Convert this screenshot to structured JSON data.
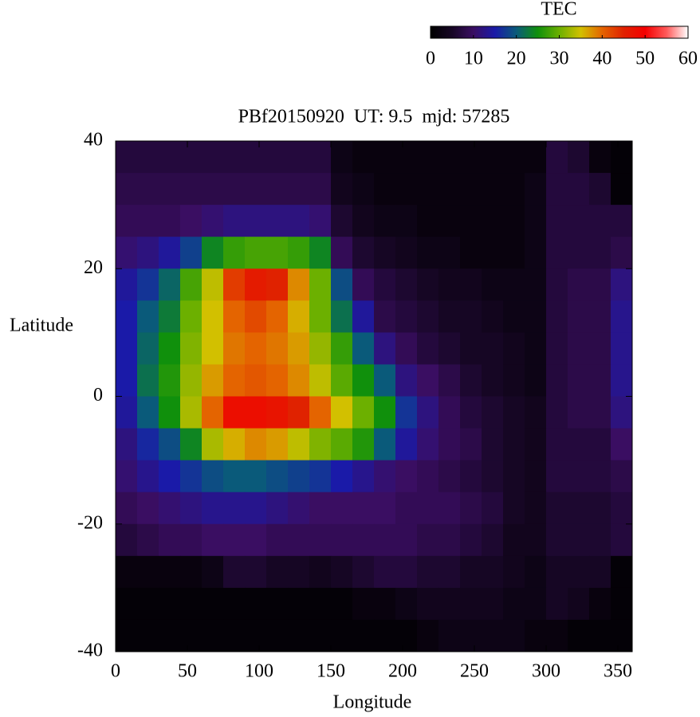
{
  "chart_data": {
    "type": "heatmap",
    "title": "PBf20150920  UT: 9.5  mjd: 57285",
    "x_label": "Longitude",
    "y_label": "Latitude",
    "colorbar_label": "TEC",
    "x": [
      7.5,
      22.5,
      37.5,
      52.5,
      67.5,
      82.5,
      97.5,
      112.5,
      127.5,
      142.5,
      157.5,
      172.5,
      187.5,
      202.5,
      217.5,
      232.5,
      247.5,
      262.5,
      277.5,
      292.5,
      307.5,
      322.5,
      337.5,
      352.5
    ],
    "y": [
      37.5,
      32.5,
      27.5,
      22.5,
      17.5,
      12.5,
      7.5,
      2.5,
      -2.5,
      -7.5,
      -12.5,
      -17.5,
      -22.5,
      -27.5,
      -32.5,
      -37.5
    ],
    "cell_width": 15,
    "cell_height": 5,
    "values": [
      [
        7,
        7,
        7,
        7,
        7,
        7,
        7,
        7,
        7,
        7,
        3,
        2,
        2,
        2,
        2,
        2,
        2,
        2,
        2,
        2,
        7,
        6,
        2,
        1
      ],
      [
        8,
        8,
        8,
        8,
        8,
        8,
        8,
        8,
        8,
        8,
        4,
        3,
        2,
        2,
        2,
        2,
        2,
        2,
        2,
        3,
        7,
        7,
        6,
        1
      ],
      [
        9,
        9,
        9,
        10,
        11,
        12,
        12,
        12,
        12,
        11,
        6,
        4,
        3,
        3,
        2,
        2,
        2,
        2,
        2,
        3,
        7,
        7,
        7,
        7
      ],
      [
        11,
        12,
        14,
        18,
        24,
        27,
        28,
        28,
        27,
        24,
        9,
        6,
        5,
        4,
        3,
        3,
        2,
        2,
        2,
        3,
        7,
        7,
        7,
        8
      ],
      [
        14,
        17,
        21,
        28,
        34,
        43,
        46,
        45,
        38,
        30,
        19,
        9,
        7,
        6,
        5,
        4,
        4,
        3,
        3,
        3,
        7,
        8,
        8,
        12
      ],
      [
        15,
        20,
        23,
        30,
        35,
        40,
        42,
        40,
        36,
        30,
        22,
        14,
        8,
        7,
        6,
        5,
        5,
        4,
        3,
        3,
        7,
        8,
        8,
        13
      ],
      [
        15,
        21,
        25,
        31,
        35,
        39,
        40,
        39,
        37,
        32,
        27,
        20,
        12,
        9,
        7,
        6,
        5,
        5,
        4,
        3,
        7,
        8,
        8,
        13
      ],
      [
        15,
        22,
        26,
        32,
        37,
        40,
        41,
        40,
        38,
        34,
        29,
        25,
        20,
        12,
        10,
        8,
        6,
        5,
        4,
        3,
        7,
        8,
        8,
        13
      ],
      [
        14,
        20,
        25,
        33,
        40,
        48,
        48,
        47,
        45,
        40,
        35,
        30,
        25,
        17,
        12,
        9,
        7,
        6,
        5,
        4,
        7,
        8,
        8,
        12
      ],
      [
        12,
        16,
        19,
        24,
        33,
        36,
        38,
        37,
        34,
        31,
        29,
        26,
        20,
        14,
        11,
        9,
        8,
        6,
        5,
        4,
        7,
        7,
        7,
        10
      ],
      [
        11,
        13,
        15,
        17,
        19,
        20,
        20,
        19,
        18,
        17,
        15,
        13,
        11,
        10,
        9,
        8,
        7,
        6,
        5,
        4,
        7,
        7,
        7,
        8
      ],
      [
        9,
        10,
        11,
        12,
        13,
        13,
        13,
        12,
        11,
        10,
        10,
        10,
        10,
        9,
        9,
        9,
        8,
        7,
        5,
        4,
        6,
        6,
        6,
        7
      ],
      [
        7,
        8,
        9,
        9,
        10,
        10,
        10,
        9,
        9,
        9,
        9,
        9,
        9,
        9,
        8,
        8,
        7,
        6,
        4,
        4,
        6,
        6,
        6,
        7
      ],
      [
        2,
        2,
        2,
        2,
        3,
        6,
        6,
        5,
        5,
        4,
        5,
        6,
        7,
        7,
        6,
        6,
        5,
        5,
        4,
        3,
        5,
        5,
        5,
        1
      ],
      [
        1,
        1,
        1,
        1,
        1,
        1,
        1,
        1,
        1,
        1,
        1,
        2,
        2,
        3,
        4,
        4,
        4,
        4,
        3,
        3,
        5,
        4,
        2,
        1
      ],
      [
        1,
        1,
        1,
        1,
        1,
        1,
        1,
        1,
        1,
        1,
        1,
        1,
        1,
        1,
        2,
        3,
        3,
        3,
        3,
        2,
        2,
        1,
        1,
        1
      ]
    ],
    "xlim": [
      0,
      360
    ],
    "xticks": [
      0,
      50,
      100,
      150,
      200,
      250,
      300,
      350
    ],
    "ylim": [
      -40,
      40
    ],
    "yticks": [
      -40,
      -20,
      0,
      20,
      40
    ],
    "clim": [
      0,
      60
    ],
    "colorbar_ticks": [
      0,
      10,
      20,
      30,
      40,
      50,
      60
    ],
    "colorscale": [
      [
        0,
        "#000000"
      ],
      [
        5,
        "#160624"
      ],
      [
        10,
        "#3a0e62"
      ],
      [
        15,
        "#1a1aa8"
      ],
      [
        20,
        "#0a5a7a"
      ],
      [
        25,
        "#10900c"
      ],
      [
        30,
        "#6cb000"
      ],
      [
        35,
        "#d2c000"
      ],
      [
        40,
        "#e46400"
      ],
      [
        45,
        "#e02200"
      ],
      [
        50,
        "#f40000"
      ],
      [
        55,
        "#ff5a5a"
      ],
      [
        60,
        "#ffffff"
      ]
    ]
  }
}
